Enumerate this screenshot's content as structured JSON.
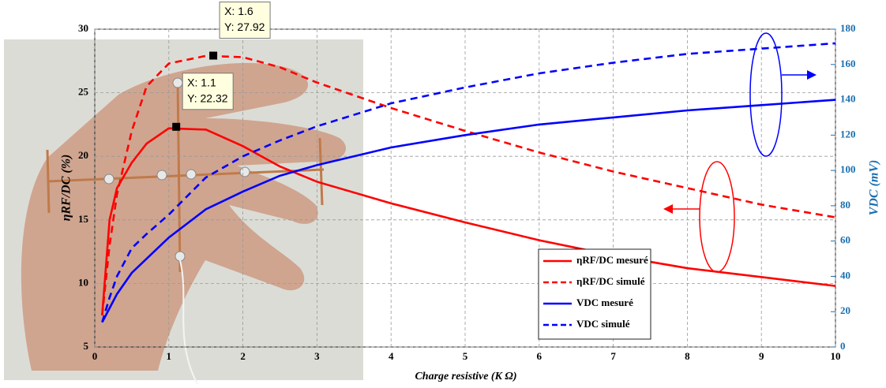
{
  "chart_data": {
    "type": "line",
    "xlabel": "Charge resistive (K Ω)",
    "ylabel": "ηRF/DC (%)",
    "y2label": "VDC (mV)",
    "x": [
      0.1,
      0.2,
      0.3,
      0.5,
      0.7,
      1,
      1.5,
      2,
      2.5,
      3,
      4,
      5,
      6,
      7,
      8,
      9,
      10
    ],
    "xlim": [
      0,
      10
    ],
    "xticks": [
      0,
      1,
      2,
      3,
      4,
      5,
      6,
      7,
      8,
      9,
      10
    ],
    "ylim": [
      5,
      30
    ],
    "yticks": [
      5,
      10,
      15,
      20,
      25,
      30
    ],
    "y2lim": [
      0,
      180
    ],
    "y2ticks": [
      0,
      20,
      40,
      60,
      80,
      100,
      120,
      140,
      160,
      180
    ],
    "grid": true,
    "series": [
      {
        "name": "ηRF/DC mesuré",
        "color": "#ff0000",
        "dashed": false,
        "values": [
          7.5,
          15,
          17.5,
          19.5,
          21,
          22.2,
          22.1,
          20.8,
          19.2,
          18,
          16.3,
          14.8,
          13.4,
          12.2,
          11.2,
          10.5,
          9.8
        ]
      },
      {
        "name": "ηRF/DC simulé",
        "color": "#ff0000",
        "dashed": true,
        "values": [
          7.5,
          13,
          17,
          22,
          25.5,
          27.3,
          27.9,
          27.8,
          27,
          25.8,
          23.8,
          22,
          20.3,
          18.8,
          17.5,
          16.2,
          15.2
        ]
      },
      {
        "name": "VDC mesuré",
        "color": "#0000ff",
        "dashed": false,
        "axis": "y2",
        "values": [
          14,
          22,
          30,
          42,
          50,
          62,
          78,
          88,
          97,
          103,
          113,
          120,
          126,
          130,
          134,
          137,
          140
        ]
      },
      {
        "name": "VDC simulé",
        "color": "#0000ff",
        "dashed": true,
        "axis": "y2",
        "values": [
          14,
          28,
          40,
          56,
          64,
          75,
          96,
          108,
          117,
          125,
          138,
          147,
          155,
          161,
          166,
          169,
          172
        ]
      }
    ],
    "annotations": [
      {
        "x": 1.6,
        "y": 27.92,
        "label_x": "X: 1.6",
        "label_y": "Y: 27.92"
      },
      {
        "x": 1.1,
        "y": 22.32,
        "label_x": "X: 1.1",
        "label_y": "Y: 22.32"
      }
    ]
  }
}
